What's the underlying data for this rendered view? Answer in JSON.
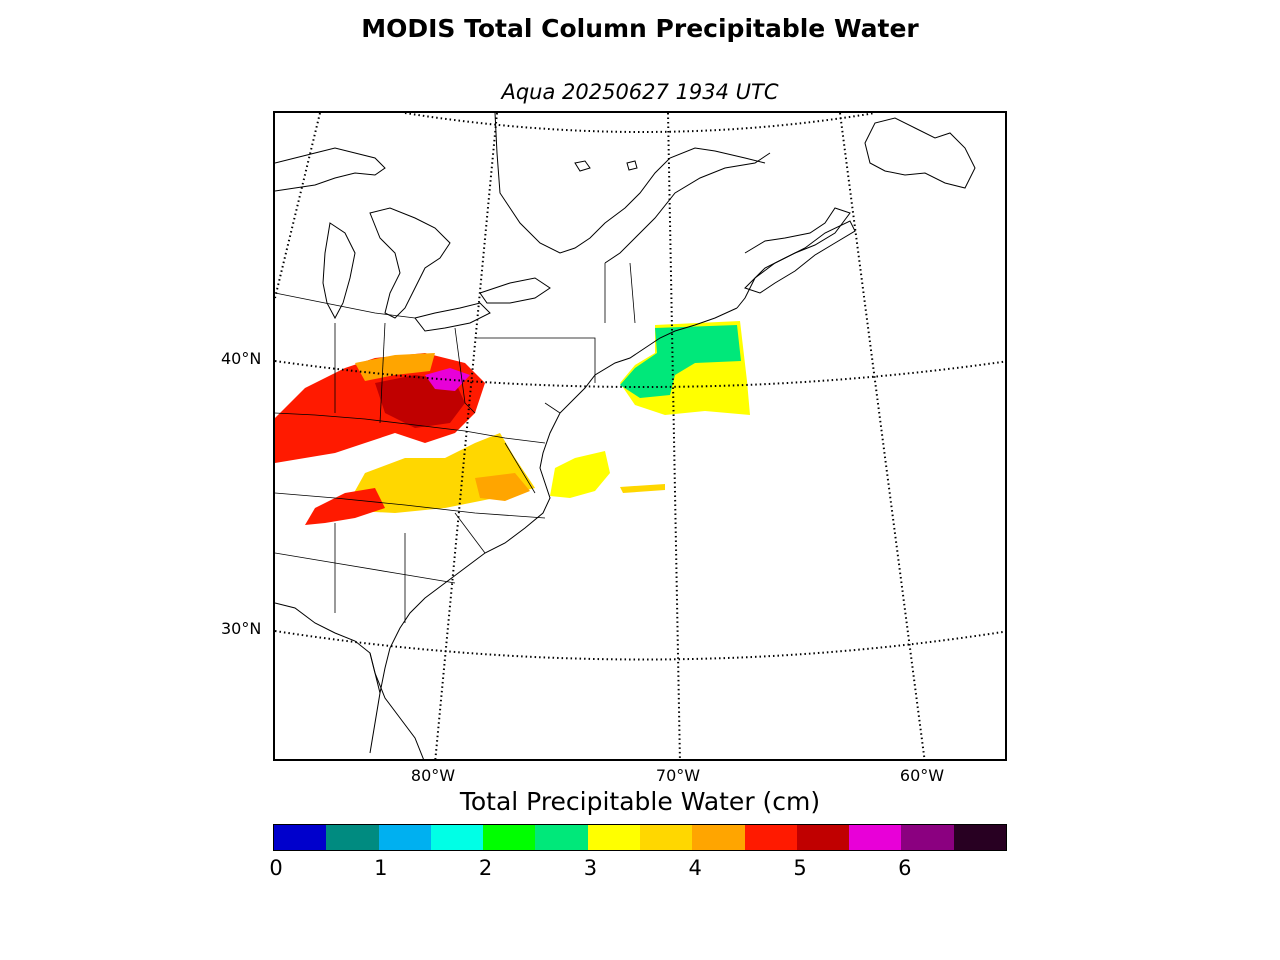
{
  "title": "MODIS Total Column Precipitable Water",
  "subtitle": "Aqua 20250627 1934 UTC",
  "map": {
    "lat_labels": [
      "40°N",
      "30°N"
    ],
    "lon_labels": [
      "80°W",
      "70°W",
      "60°W"
    ]
  },
  "colorbar": {
    "label": "Total Precipitable Water (cm)",
    "ticks": [
      "0",
      "1",
      "2",
      "3",
      "4",
      "5",
      "6"
    ],
    "colors": [
      "#0000cc",
      "#008b80",
      "#00b0f0",
      "#00ffe6",
      "#00ff00",
      "#00e87a",
      "#ffff00",
      "#ffd700",
      "#ffa500",
      "#ff1a00",
      "#c00000",
      "#e800d8",
      "#8b0080",
      "#280022"
    ]
  }
}
